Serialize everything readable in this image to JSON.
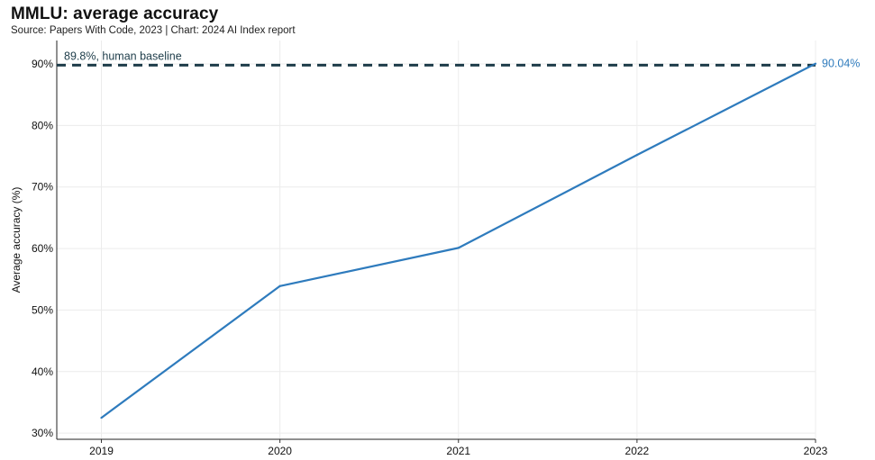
{
  "header": {
    "title": "MMLU: average accuracy",
    "subtitle": "Source: Papers With Code, 2023 | Chart: 2024 AI Index report"
  },
  "chart_data": {
    "type": "line",
    "title": "MMLU: average accuracy",
    "subtitle": "Source: Papers With Code, 2023 | Chart: 2024 AI Index report",
    "xlabel": "",
    "ylabel": "Average accuracy (%)",
    "x": [
      2019,
      2020,
      2021,
      2022,
      2023
    ],
    "x_tick_labels": [
      "2019",
      "2020",
      "2021",
      "2022",
      "2023"
    ],
    "y_tick_values": [
      30,
      40,
      50,
      60,
      70,
      80,
      90
    ],
    "y_tick_labels": [
      "30%",
      "40%",
      "50%",
      "60%",
      "70%",
      "80%",
      "90%"
    ],
    "xlim": [
      2018.75,
      2023
    ],
    "ylim": [
      29,
      93.8
    ],
    "grid": true,
    "series": [
      {
        "x": [
          2019,
          2020,
          2021,
          2022,
          2023
        ],
        "values": [
          32.5,
          53.9,
          60.1,
          75.2,
          90.04
        ],
        "color": "#2e7bbd"
      }
    ],
    "reference_line": {
      "value": 89.8,
      "label": "89.8%, human baseline",
      "style": "dashed",
      "color": "#1e3d4a"
    },
    "annotations": [
      {
        "x": 2023,
        "y": 90.04,
        "text": "90.04%",
        "color": "#2e7bbd"
      }
    ]
  }
}
